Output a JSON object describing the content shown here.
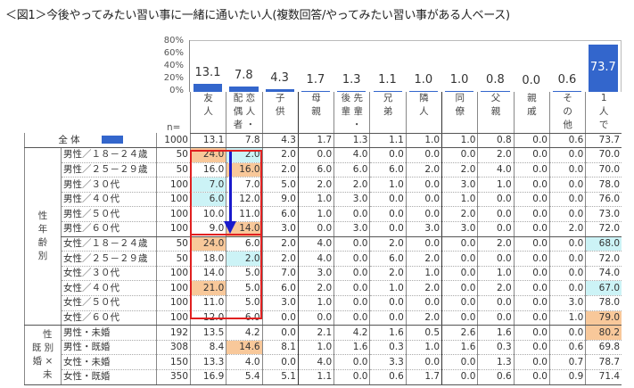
{
  "title": "＜図1＞今後やってみたい習い事に一緒に通いたい人(複数回答/やってみたい習い事がある人ベース)",
  "chart_data": {
    "type": "bar",
    "title": "＜図1＞今後やってみたい習い事に一緒に通いたい人(複数回答/やってみたい習い事がある人ベース)",
    "categories": [
      "友人",
      "配偶者・恋人",
      "子供",
      "母親",
      "後輩・先輩",
      "兄弟",
      "隣人",
      "同僚",
      "父親",
      "親戚",
      "その他",
      "1人で"
    ],
    "values": [
      13.1,
      7.8,
      4.3,
      1.7,
      1.3,
      1.1,
      1.0,
      1.0,
      0.8,
      0.0,
      0.6,
      73.7
    ],
    "yticks": [
      "80%",
      "60%",
      "40%",
      "20%",
      "0%"
    ],
    "ylim": [
      0,
      80
    ],
    "xlabel": "",
    "ylabel": "",
    "grid": false,
    "bar_color": "#3366cc",
    "series_name": "全体",
    "table": {
      "n_label": "n=",
      "columns": [
        "友人",
        "配偶者・恋人",
        "子供",
        "母親",
        "後輩・先輩",
        "兄弟",
        "隣人",
        "同僚",
        "父親",
        "親戚",
        "その他",
        "1人で"
      ],
      "rows": [
        {
          "label": "全体",
          "n": 1000,
          "values": [
            13.1,
            7.8,
            4.3,
            1.7,
            1.3,
            1.1,
            1.0,
            1.0,
            0.8,
            0.0,
            0.6,
            73.7
          ]
        },
        {
          "group": "性年齢別",
          "label": "男性／１８－２４歳",
          "n": 50,
          "values": [
            24.0,
            2.0,
            2.0,
            0.0,
            4.0,
            0.0,
            0.0,
            0.0,
            2.0,
            0.0,
            0.0,
            70.0
          ]
        },
        {
          "group": "性年齢別",
          "label": "男性／２５－２９歳",
          "n": 50,
          "values": [
            16.0,
            16.0,
            2.0,
            6.0,
            6.0,
            6.0,
            2.0,
            2.0,
            4.0,
            0.0,
            0.0,
            70.0
          ]
        },
        {
          "group": "性年齢別",
          "label": "男性／３０代",
          "n": 100,
          "values": [
            7.0,
            7.0,
            5.0,
            2.0,
            2.0,
            1.0,
            0.0,
            3.0,
            1.0,
            0.0,
            0.0,
            78.0
          ]
        },
        {
          "group": "性年齢別",
          "label": "男性／４０代",
          "n": 100,
          "values": [
            6.0,
            12.0,
            9.0,
            1.0,
            3.0,
            0.0,
            0.0,
            1.0,
            0.0,
            0.0,
            0.0,
            76.0
          ]
        },
        {
          "group": "性年齢別",
          "label": "男性／５０代",
          "n": 100,
          "values": [
            10.0,
            11.0,
            6.0,
            1.0,
            0.0,
            0.0,
            0.0,
            2.0,
            0.0,
            0.0,
            0.0,
            73.0
          ]
        },
        {
          "group": "性年齢別",
          "label": "男性／６０代",
          "n": 100,
          "values": [
            9.0,
            14.0,
            3.0,
            0.0,
            3.0,
            0.0,
            3.0,
            3.0,
            0.0,
            0.0,
            2.0,
            72.0
          ]
        },
        {
          "group": "性年齢別",
          "label": "女性／１８－２４歳",
          "n": 50,
          "values": [
            24.0,
            6.0,
            2.0,
            4.0,
            0.0,
            2.0,
            0.0,
            0.0,
            2.0,
            0.0,
            0.0,
            68.0
          ]
        },
        {
          "group": "性年齢別",
          "label": "女性／２５－２９歳",
          "n": 50,
          "values": [
            18.0,
            2.0,
            2.0,
            4.0,
            0.0,
            6.0,
            2.0,
            0.0,
            0.0,
            0.0,
            0.0,
            72.0
          ]
        },
        {
          "group": "性年齢別",
          "label": "女性／３０代",
          "n": 100,
          "values": [
            14.0,
            5.0,
            7.0,
            3.0,
            0.0,
            2.0,
            1.0,
            0.0,
            1.0,
            0.0,
            0.0,
            74.0
          ]
        },
        {
          "group": "性年齢別",
          "label": "女性／４０代",
          "n": 100,
          "values": [
            21.0,
            5.0,
            6.0,
            2.0,
            0.0,
            1.0,
            2.0,
            0.0,
            2.0,
            0.0,
            0.0,
            67.0
          ]
        },
        {
          "group": "性年齢別",
          "label": "女性／５０代",
          "n": 100,
          "values": [
            11.0,
            5.0,
            3.0,
            1.0,
            0.0,
            0.0,
            0.0,
            0.0,
            0.0,
            0.0,
            3.0,
            78.0
          ]
        },
        {
          "group": "性年齢別",
          "label": "女性／６０代",
          "n": 100,
          "values": [
            12.0,
            6.0,
            0.0,
            0.0,
            0.0,
            0.0,
            2.0,
            0.0,
            0.0,
            0.0,
            1.0,
            79.0
          ]
        },
        {
          "group": "性別×未既婚",
          "label": "男性・未婚",
          "n": 192,
          "values": [
            13.5,
            4.2,
            0.0,
            2.1,
            4.2,
            1.6,
            0.5,
            2.6,
            1.6,
            0.0,
            0.0,
            80.2
          ]
        },
        {
          "group": "性別×未既婚",
          "label": "男性・既婚",
          "n": 308,
          "values": [
            8.4,
            14.6,
            8.1,
            1.0,
            1.6,
            0.3,
            1.0,
            1.6,
            0.3,
            0.0,
            0.6,
            69.8
          ]
        },
        {
          "group": "性別×未既婚",
          "label": "女性・未婚",
          "n": 150,
          "values": [
            13.3,
            4.0,
            0.0,
            4.0,
            0.0,
            3.3,
            0.0,
            0.0,
            1.3,
            0.0,
            0.7,
            78.7
          ]
        },
        {
          "group": "性別×未既婚",
          "label": "女性・既婚",
          "n": 350,
          "values": [
            16.9,
            5.4,
            5.1,
            1.1,
            0.0,
            0.6,
            1.7,
            0.0,
            0.6,
            0.0,
            0.9,
            71.4
          ]
        }
      ],
      "highlight_colors": {
        "high": "#f8c89a",
        "low": "#ccf3f6"
      }
    }
  },
  "chart": {
    "yticks": [
      "80%",
      "60%",
      "40%",
      "20%",
      "0%"
    ],
    "bar_labels": [
      "13.1",
      "7.8",
      "4.3",
      "1.7",
      "1.3",
      "1.1",
      "1.0",
      "1.0",
      "0.8",
      "0.0",
      "0.6",
      "73.7"
    ]
  },
  "table": {
    "n_label": "n=",
    "headers": [
      "友\n人",
      "配 恋\n偶 人\n者 ・",
      "子\n供",
      "母\n親",
      "後 先\n輩 輩\n　・",
      "兄\n弟",
      "隣\n人",
      "同\n僚",
      "父\n親",
      "親\n戚",
      "そ\nの\n他",
      "1\n人\nで"
    ],
    "group_labels": [
      "性\n年\n齢\n別",
      "　性\n既 別\n婚 ×\n　未"
    ],
    "total_label": "全 体",
    "rows": [
      {
        "label": "全 体",
        "n": "1000",
        "v": [
          "13.1",
          "7.8",
          "4.3",
          "1.7",
          "1.3",
          "1.1",
          "1.0",
          "1.0",
          "0.8",
          "0.0",
          "0.6",
          "73.7"
        ]
      },
      {
        "label": "男性／１８－２４歳",
        "n": "50",
        "v": [
          "24.0",
          "2.0",
          "2.0",
          "0.0",
          "4.0",
          "0.0",
          "0.0",
          "0.0",
          "2.0",
          "0.0",
          "0.0",
          "70.0"
        ]
      },
      {
        "label": "男性／２５－２９歳",
        "n": "50",
        "v": [
          "16.0",
          "16.0",
          "2.0",
          "6.0",
          "6.0",
          "6.0",
          "2.0",
          "2.0",
          "4.0",
          "0.0",
          "0.0",
          "70.0"
        ]
      },
      {
        "label": "男性／３０代",
        "n": "100",
        "v": [
          "7.0",
          "7.0",
          "5.0",
          "2.0",
          "2.0",
          "1.0",
          "0.0",
          "3.0",
          "1.0",
          "0.0",
          "0.0",
          "78.0"
        ]
      },
      {
        "label": "男性／４０代",
        "n": "100",
        "v": [
          "6.0",
          "12.0",
          "9.0",
          "1.0",
          "3.0",
          "0.0",
          "0.0",
          "1.0",
          "0.0",
          "0.0",
          "0.0",
          "76.0"
        ]
      },
      {
        "label": "男性／５０代",
        "n": "100",
        "v": [
          "10.0",
          "11.0",
          "6.0",
          "1.0",
          "0.0",
          "0.0",
          "0.0",
          "2.0",
          "0.0",
          "0.0",
          "0.0",
          "73.0"
        ]
      },
      {
        "label": "男性／６０代",
        "n": "100",
        "v": [
          "9.0",
          "14.0",
          "3.0",
          "0.0",
          "3.0",
          "0.0",
          "3.0",
          "3.0",
          "0.0",
          "0.0",
          "2.0",
          "72.0"
        ]
      },
      {
        "label": "女性／１８－２４歳",
        "n": "50",
        "v": [
          "24.0",
          "6.0",
          "2.0",
          "4.0",
          "0.0",
          "2.0",
          "0.0",
          "0.0",
          "2.0",
          "0.0",
          "0.0",
          "68.0"
        ]
      },
      {
        "label": "女性／２５－２９歳",
        "n": "50",
        "v": [
          "18.0",
          "2.0",
          "2.0",
          "4.0",
          "0.0",
          "6.0",
          "2.0",
          "0.0",
          "0.0",
          "0.0",
          "0.0",
          "72.0"
        ]
      },
      {
        "label": "女性／３０代",
        "n": "100",
        "v": [
          "14.0",
          "5.0",
          "7.0",
          "3.0",
          "0.0",
          "2.0",
          "1.0",
          "0.0",
          "1.0",
          "0.0",
          "0.0",
          "74.0"
        ]
      },
      {
        "label": "女性／４０代",
        "n": "100",
        "v": [
          "21.0",
          "5.0",
          "6.0",
          "2.0",
          "0.0",
          "1.0",
          "2.0",
          "0.0",
          "2.0",
          "0.0",
          "0.0",
          "67.0"
        ]
      },
      {
        "label": "女性／５０代",
        "n": "100",
        "v": [
          "11.0",
          "5.0",
          "3.0",
          "1.0",
          "0.0",
          "0.0",
          "0.0",
          "0.0",
          "0.0",
          "0.0",
          "3.0",
          "78.0"
        ]
      },
      {
        "label": "女性／６０代",
        "n": "100",
        "v": [
          "12.0",
          "6.0",
          "0.0",
          "0.0",
          "0.0",
          "0.0",
          "2.0",
          "0.0",
          "0.0",
          "0.0",
          "1.0",
          "79.0"
        ]
      },
      {
        "label": "男性・未婚",
        "n": "192",
        "v": [
          "13.5",
          "4.2",
          "0.0",
          "2.1",
          "4.2",
          "1.6",
          "0.5",
          "2.6",
          "1.6",
          "0.0",
          "0.0",
          "80.2"
        ]
      },
      {
        "label": "男性・既婚",
        "n": "308",
        "v": [
          "8.4",
          "14.6",
          "8.1",
          "1.0",
          "1.6",
          "0.3",
          "1.0",
          "1.6",
          "0.3",
          "0.0",
          "0.6",
          "69.8"
        ]
      },
      {
        "label": "女性・未婚",
        "n": "150",
        "v": [
          "13.3",
          "4.0",
          "0.0",
          "4.0",
          "0.0",
          "3.3",
          "0.0",
          "0.0",
          "1.3",
          "0.0",
          "0.7",
          "78.7"
        ]
      },
      {
        "label": "女性・既婚",
        "n": "350",
        "v": [
          "16.9",
          "5.4",
          "5.1",
          "1.1",
          "0.0",
          "0.6",
          "1.7",
          "0.0",
          "0.6",
          "0.0",
          "0.9",
          "71.4"
        ]
      }
    ]
  }
}
